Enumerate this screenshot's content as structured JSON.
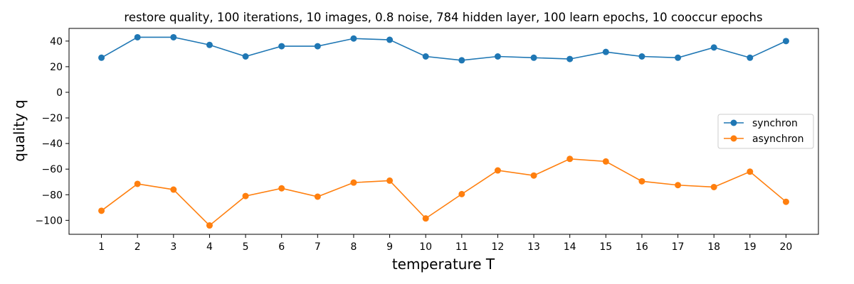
{
  "chart_data": {
    "type": "line",
    "title": "restore quality, 100 iterations, 10 images, 0.8 noise, 784 hidden layer, 100 learn epochs, 10 cooccur epochs",
    "xlabel": "temperature T",
    "ylabel": "quality q",
    "x": [
      1,
      2,
      3,
      4,
      5,
      6,
      7,
      8,
      9,
      10,
      11,
      12,
      13,
      14,
      15,
      16,
      17,
      18,
      19,
      20
    ],
    "xlim": [
      0.1,
      20.9
    ],
    "ylim": [
      -110.9,
      49.9
    ],
    "yticks": [
      40,
      20,
      0,
      -20,
      -40,
      -60,
      -80,
      -100
    ],
    "ytick_labels": [
      "40",
      "20",
      "0",
      "−20",
      "−40",
      "−60",
      "−80",
      "−100"
    ],
    "legend_position": "center-right",
    "grid": false,
    "series": [
      {
        "name": "synchron",
        "color": "#1f77b4",
        "values": [
          27,
          43,
          43,
          37,
          28,
          36,
          36,
          42,
          41,
          28,
          25,
          28,
          27,
          26,
          31.5,
          28,
          27,
          35,
          27,
          40
        ]
      },
      {
        "name": "asynchron",
        "color": "#ff7f0e",
        "values": [
          -92.5,
          -71.5,
          -76,
          -104,
          -81,
          -75,
          -81.5,
          -70.5,
          -69,
          -98.5,
          -79.5,
          -61,
          -65,
          -52,
          -54,
          -69.5,
          -72.5,
          -74,
          -62,
          -85.5
        ]
      }
    ]
  }
}
